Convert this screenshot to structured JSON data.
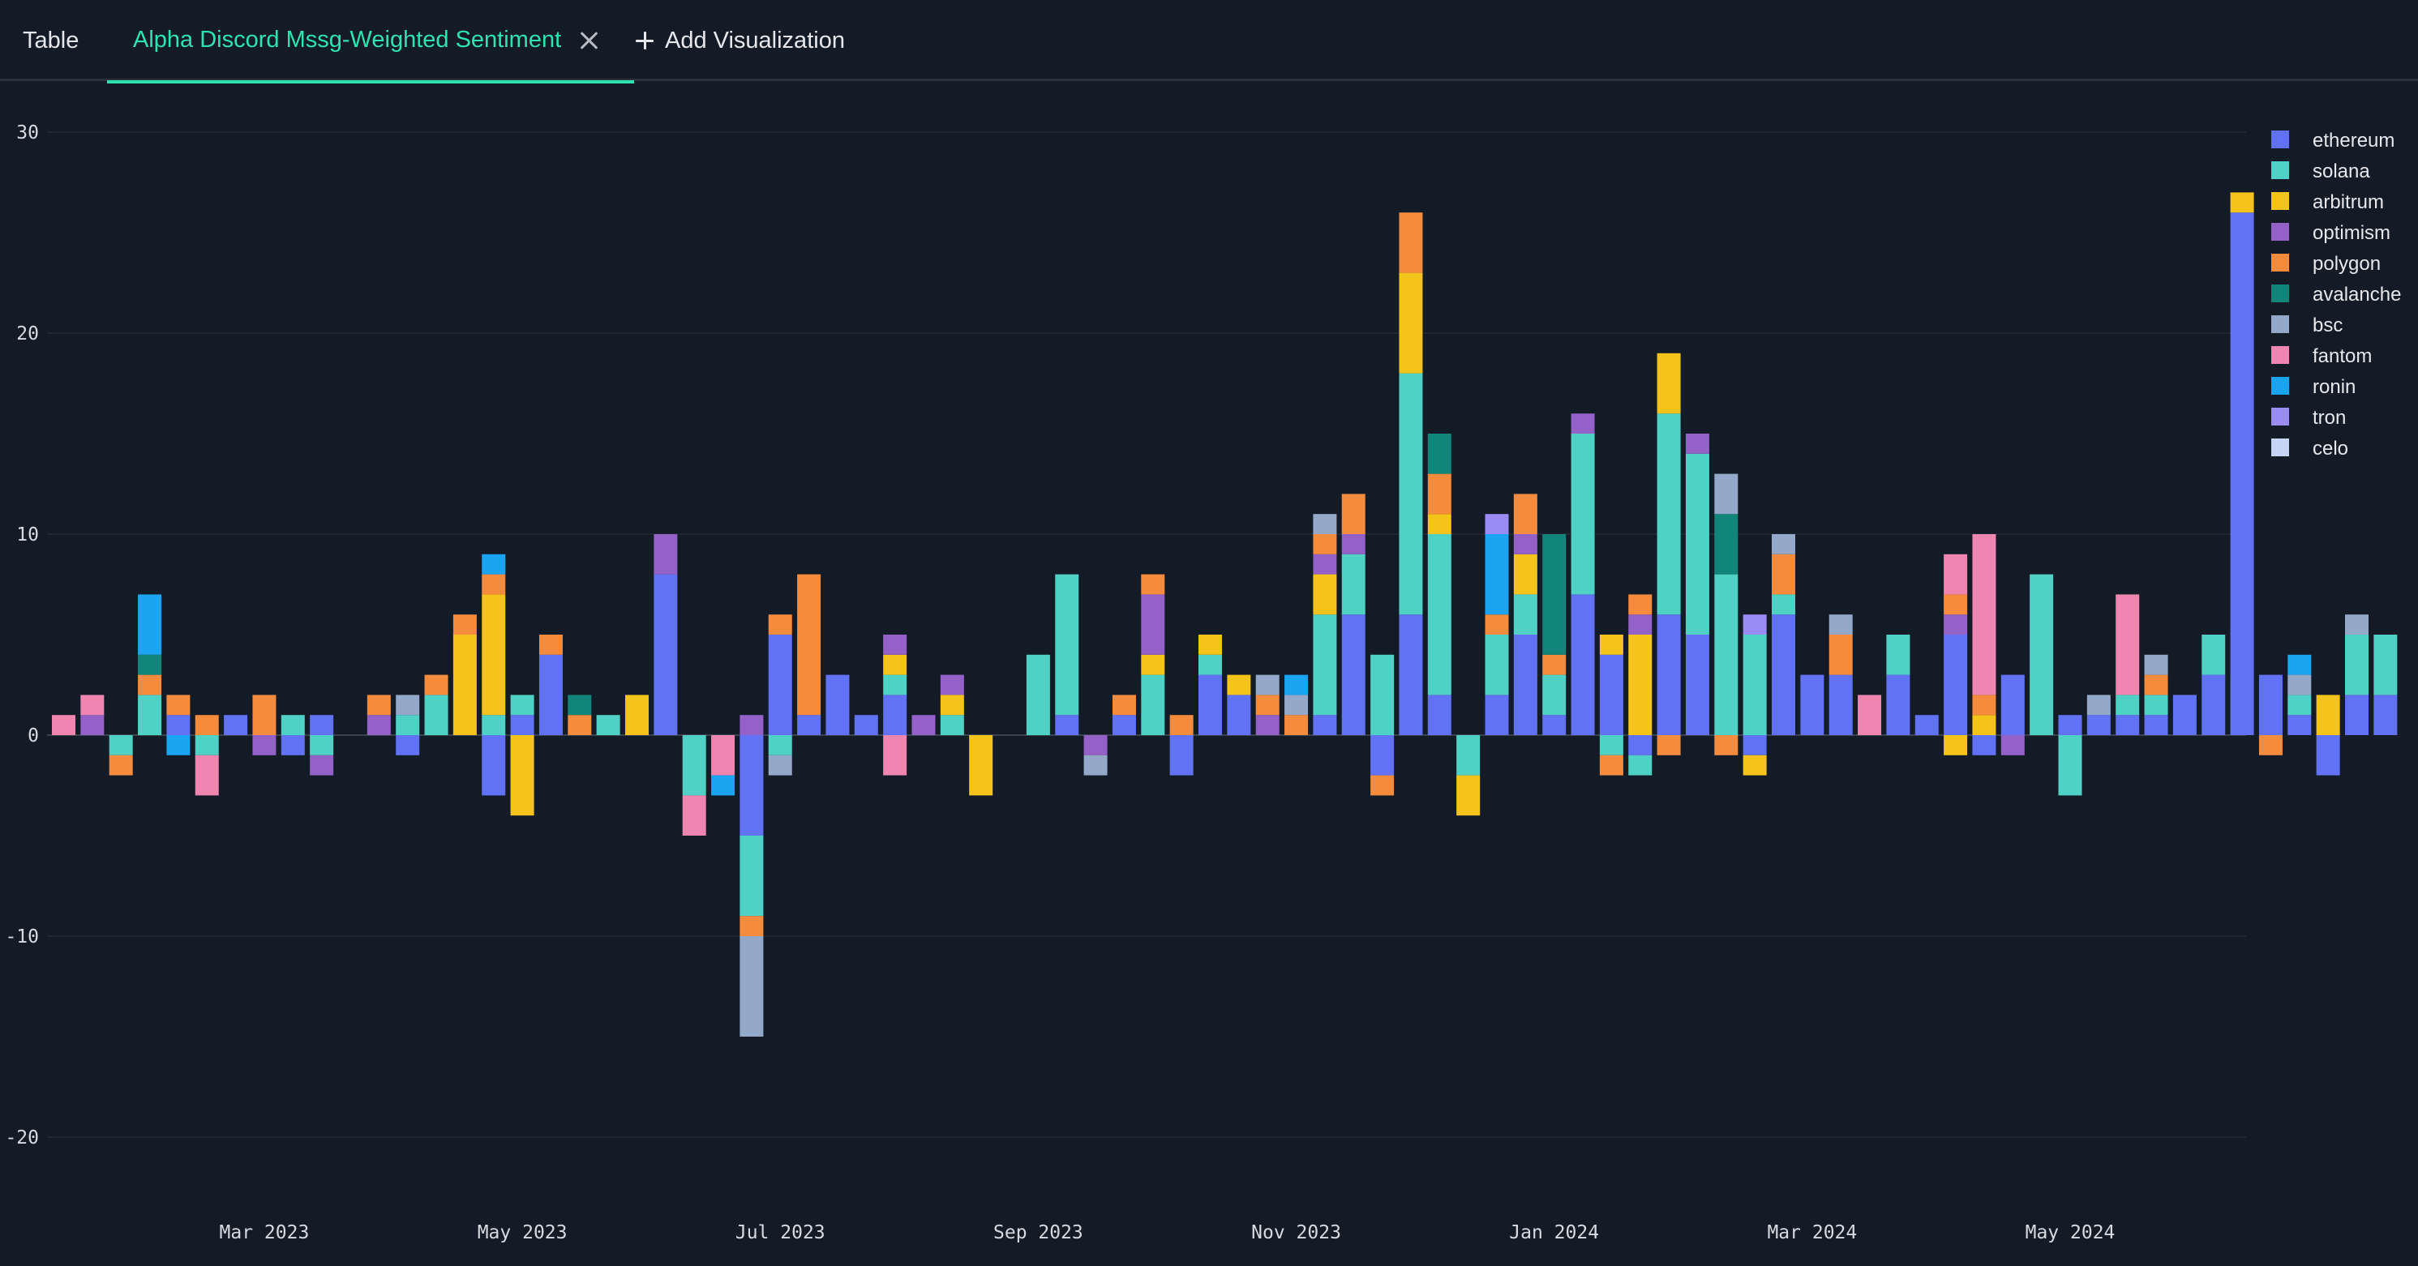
{
  "tabs": {
    "table_label": "Table",
    "active_label": "Alpha Discord Mssg-Weighted Sentiment",
    "add_label": "Add Visualization"
  },
  "icons": {
    "close": "close-icon",
    "add": "plus-icon"
  },
  "colors": {
    "background": "#131b26",
    "accent": "#2fe3b0",
    "grid": "#1e2731"
  },
  "chart_data": {
    "type": "bar",
    "stacked": true,
    "ylim": [
      -21,
      30
    ],
    "yticks": [
      -20,
      -10,
      0,
      10,
      20,
      30
    ],
    "xtick_labels": [
      "Mar 2023",
      "May 2023",
      "Jul 2023",
      "Sep 2023",
      "Nov 2023",
      "Jan 2024",
      "Mar 2024",
      "May 2024"
    ],
    "xtick_bar_index": [
      7,
      16,
      25,
      34,
      43,
      52,
      61,
      70
    ],
    "legend_position": "top-right",
    "grid": true,
    "series": [
      {
        "name": "ethereum",
        "color": "#6272f5",
        "values": [
          0,
          0,
          0,
          0,
          1,
          0,
          1,
          0,
          -1,
          1,
          0,
          0,
          -1,
          0,
          0,
          -3,
          1,
          4,
          0,
          0,
          0,
          8,
          0,
          0,
          -5,
          5,
          1,
          3,
          1,
          2,
          0,
          0,
          0,
          0,
          0,
          1,
          0,
          1,
          0,
          -2,
          3,
          2,
          0,
          0,
          1,
          6,
          -2,
          6,
          2,
          0,
          2,
          5,
          1,
          7,
          4,
          -1,
          6,
          5,
          0,
          -1,
          6,
          3,
          3,
          0,
          3,
          1,
          5,
          -1,
          3,
          0,
          1,
          1,
          1,
          1,
          2,
          3,
          26,
          3,
          1,
          -2,
          2,
          2
        ]
      },
      {
        "name": "solana",
        "color": "#4fd1c5",
        "values": [
          0,
          0,
          -1,
          2,
          0,
          -1,
          0,
          0,
          1,
          -1,
          0,
          0,
          1,
          2,
          0,
          1,
          1,
          0,
          0,
          1,
          0,
          0,
          -3,
          0,
          -4,
          -1,
          0,
          0,
          0,
          1,
          0,
          1,
          0,
          0,
          4,
          7,
          0,
          0,
          3,
          0,
          1,
          0,
          0,
          0,
          5,
          3,
          4,
          12,
          8,
          -2,
          3,
          2,
          2,
          8,
          -1,
          -1,
          10,
          9,
          8,
          5,
          1,
          0,
          0,
          0,
          2,
          0,
          0,
          0,
          0,
          8,
          -3,
          0,
          1,
          1,
          0,
          2,
          0,
          0,
          1,
          0,
          3,
          3
        ]
      },
      {
        "name": "arbitrum",
        "color": "#f5c41a",
        "values": [
          0,
          0,
          0,
          0,
          0,
          0,
          0,
          0,
          0,
          0,
          0,
          0,
          0,
          0,
          5,
          6,
          -4,
          0,
          0,
          0,
          2,
          0,
          0,
          0,
          0,
          0,
          0,
          0,
          0,
          1,
          0,
          1,
          -3,
          0,
          0,
          0,
          0,
          0,
          1,
          0,
          1,
          1,
          0,
          0,
          2,
          0,
          0,
          5,
          1,
          -2,
          0,
          2,
          0,
          0,
          1,
          5,
          3,
          0,
          0,
          -1,
          0,
          0,
          0,
          0,
          0,
          0,
          -1,
          1,
          0,
          0,
          0,
          0,
          0,
          0,
          0,
          0,
          1,
          0,
          0,
          2,
          0,
          0
        ]
      },
      {
        "name": "optimism",
        "color": "#9461c9",
        "values": [
          0,
          1,
          0,
          0,
          0,
          0,
          0,
          -1,
          0,
          -1,
          0,
          1,
          0,
          0,
          0,
          0,
          0,
          0,
          0,
          0,
          0,
          2,
          0,
          0,
          1,
          0,
          0,
          0,
          0,
          1,
          1,
          1,
          0,
          0,
          0,
          0,
          -1,
          0,
          3,
          0,
          0,
          0,
          1,
          0,
          1,
          1,
          0,
          0,
          0,
          0,
          0,
          1,
          0,
          1,
          0,
          1,
          0,
          1,
          0,
          0,
          0,
          0,
          0,
          0,
          0,
          0,
          1,
          0,
          -1,
          0,
          0,
          0,
          0,
          0,
          0,
          0,
          0,
          0,
          0,
          0,
          0,
          0
        ]
      },
      {
        "name": "polygon",
        "color": "#f58b3d",
        "values": [
          0,
          0,
          -1,
          1,
          1,
          1,
          0,
          2,
          0,
          0,
          0,
          1,
          0,
          1,
          1,
          1,
          0,
          1,
          1,
          0,
          0,
          0,
          0,
          0,
          -1,
          1,
          7,
          0,
          0,
          0,
          0,
          0,
          0,
          0,
          0,
          0,
          0,
          1,
          1,
          1,
          0,
          0,
          1,
          1,
          1,
          2,
          -1,
          3,
          2,
          0,
          1,
          2,
          1,
          0,
          -1,
          1,
          -1,
          0,
          -1,
          0,
          2,
          0,
          2,
          0,
          0,
          0,
          1,
          1,
          0,
          0,
          0,
          0,
          0,
          1,
          0,
          0,
          0,
          -1,
          0,
          0,
          0,
          0
        ]
      },
      {
        "name": "avalanche",
        "color": "#12857a",
        "values": [
          0,
          0,
          0,
          1,
          0,
          0,
          0,
          0,
          0,
          0,
          0,
          0,
          0,
          0,
          0,
          0,
          0,
          0,
          1,
          0,
          0,
          0,
          0,
          0,
          0,
          0,
          0,
          0,
          0,
          0,
          0,
          0,
          0,
          0,
          0,
          0,
          0,
          0,
          0,
          0,
          0,
          0,
          0,
          0,
          0,
          0,
          0,
          0,
          2,
          0,
          0,
          0,
          6,
          0,
          0,
          0,
          0,
          0,
          3,
          0,
          0,
          0,
          0,
          0,
          0,
          0,
          0,
          0,
          0,
          0,
          0,
          0,
          0,
          0,
          0,
          0,
          0,
          0,
          0,
          0,
          0,
          0
        ]
      },
      {
        "name": "bsc",
        "color": "#94a8c9",
        "values": [
          0,
          0,
          0,
          0,
          0,
          0,
          0,
          0,
          0,
          0,
          0,
          0,
          1,
          0,
          0,
          0,
          0,
          0,
          0,
          0,
          0,
          0,
          0,
          0,
          -5,
          -1,
          0,
          0,
          0,
          0,
          0,
          0,
          0,
          0,
          0,
          0,
          -1,
          0,
          0,
          0,
          0,
          0,
          1,
          1,
          1,
          0,
          0,
          0,
          0,
          0,
          0,
          0,
          0,
          0,
          0,
          0,
          0,
          0,
          2,
          0,
          1,
          0,
          1,
          0,
          0,
          0,
          0,
          0,
          0,
          0,
          0,
          1,
          0,
          1,
          0,
          0,
          0,
          0,
          1,
          0,
          1,
          0
        ]
      },
      {
        "name": "fantom",
        "color": "#ee86b0",
        "values": [
          1,
          1,
          0,
          0,
          0,
          -2,
          0,
          0,
          0,
          0,
          0,
          0,
          0,
          0,
          0,
          0,
          0,
          0,
          0,
          0,
          0,
          0,
          -2,
          -2,
          0,
          0,
          0,
          0,
          0,
          -2,
          0,
          0,
          0,
          0,
          0,
          0,
          0,
          0,
          0,
          0,
          0,
          0,
          0,
          0,
          0,
          0,
          0,
          0,
          0,
          0,
          0,
          0,
          0,
          0,
          0,
          0,
          0,
          0,
          0,
          0,
          0,
          0,
          0,
          2,
          0,
          0,
          2,
          8,
          0,
          0,
          0,
          0,
          5,
          0,
          0,
          0,
          0,
          0,
          0,
          0,
          0,
          0
        ]
      },
      {
        "name": "ronin",
        "color": "#1aa4f2",
        "values": [
          0,
          0,
          0,
          3,
          -1,
          0,
          0,
          0,
          0,
          0,
          0,
          0,
          0,
          0,
          0,
          1,
          0,
          0,
          0,
          0,
          0,
          0,
          0,
          -1,
          0,
          0,
          0,
          0,
          0,
          0,
          0,
          0,
          0,
          0,
          0,
          0,
          0,
          0,
          0,
          0,
          0,
          0,
          0,
          1,
          0,
          0,
          0,
          0,
          0,
          0,
          4,
          0,
          0,
          0,
          0,
          0,
          0,
          0,
          0,
          0,
          0,
          0,
          0,
          0,
          0,
          0,
          0,
          0,
          0,
          0,
          0,
          0,
          0,
          0,
          0,
          0,
          0,
          0,
          1,
          0,
          0,
          0
        ]
      },
      {
        "name": "tron",
        "color": "#9a8cf2",
        "values": [
          0,
          0,
          0,
          0,
          0,
          0,
          0,
          0,
          0,
          0,
          0,
          0,
          0,
          0,
          0,
          0,
          0,
          0,
          0,
          0,
          0,
          0,
          0,
          0,
          0,
          0,
          0,
          0,
          0,
          0,
          0,
          0,
          0,
          0,
          0,
          0,
          0,
          0,
          0,
          0,
          0,
          0,
          0,
          0,
          0,
          0,
          0,
          0,
          0,
          0,
          1,
          0,
          0,
          0,
          0,
          0,
          0,
          0,
          0,
          1,
          0,
          0,
          0,
          0,
          0,
          0,
          0,
          0,
          0,
          0,
          0,
          0,
          0,
          0,
          0,
          0,
          0,
          0,
          0,
          0,
          0,
          0
        ]
      },
      {
        "name": "celo",
        "color": "#c5d4f5",
        "values": [
          0,
          0,
          0,
          0,
          0,
          0,
          0,
          0,
          0,
          0,
          0,
          0,
          0,
          0,
          0,
          0,
          0,
          0,
          0,
          0,
          0,
          0,
          0,
          0,
          0,
          0,
          0,
          0,
          0,
          0,
          0,
          0,
          0,
          0,
          0,
          0,
          0,
          0,
          0,
          0,
          0,
          0,
          0,
          0,
          0,
          0,
          0,
          0,
          0,
          0,
          0,
          0,
          0,
          0,
          0,
          0,
          0,
          0,
          0,
          0,
          0,
          0,
          0,
          0,
          0,
          0,
          0,
          0,
          0,
          0,
          0,
          0,
          0,
          0,
          0,
          0,
          0,
          0,
          0,
          0,
          0,
          0
        ]
      }
    ]
  }
}
